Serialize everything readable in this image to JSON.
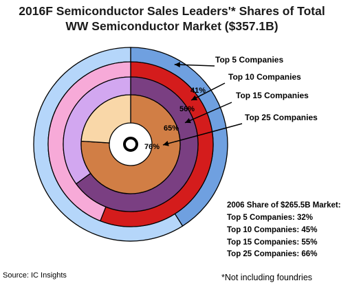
{
  "chart_data": {
    "type": "pie",
    "subtype": "nested-rings",
    "title_lines": [
      "2016F Semiconductor Sales Leaders'* Shares of Total",
      "WW Semiconductor Market ($357.1B)"
    ],
    "series": [
      {
        "name": "Top 5 Companies",
        "value": 41,
        "label": "41%",
        "color_share": "#6fa0e0",
        "color_rest": "#b5d6fa"
      },
      {
        "name": "Top 10 Companies",
        "value": 56,
        "label": "56%",
        "color_share": "#d41c1c",
        "color_rest": "#f7aad8"
      },
      {
        "name": "Top 15 Companies",
        "value": 65,
        "label": "65%",
        "color_share": "#7a3f82",
        "color_rest": "#d2a7f0"
      },
      {
        "name": "Top 25 Companies",
        "value": 76,
        "label": "76%",
        "color_share": "#d17e45",
        "color_rest": "#f9d7a8"
      }
    ],
    "comparison": {
      "heading": "2006 Share of $265.5B Market:",
      "items": [
        "Top 5 Companies: 32%",
        "Top 10 Companies: 45%",
        "Top 15 Companies: 55%",
        "Top 25 Companies: 66%"
      ]
    },
    "source": "Source: IC Insights",
    "footnote": "*Not including foundries"
  }
}
